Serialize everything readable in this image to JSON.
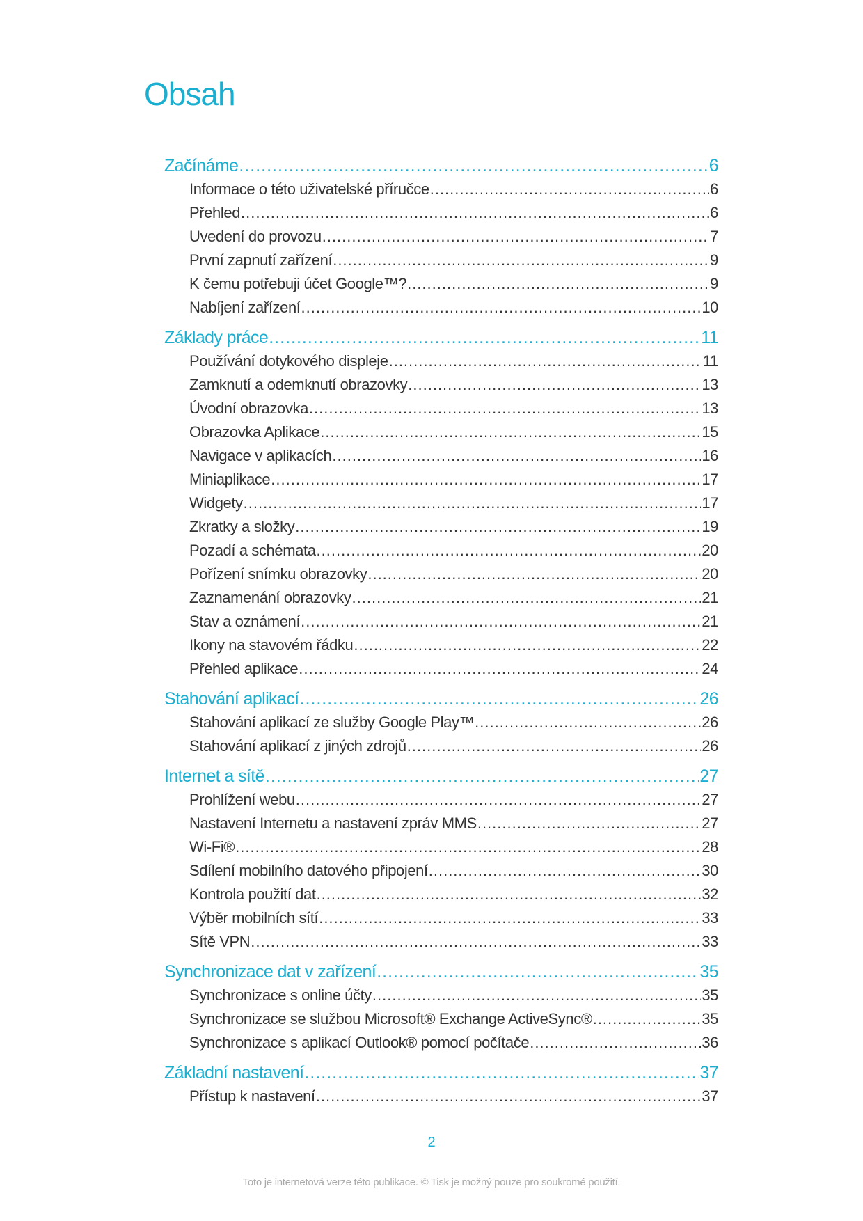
{
  "title": "Obsah",
  "accent_color": "#1aaed0",
  "sections": [
    {
      "label": "Začínáme",
      "page": "6",
      "items": [
        {
          "label": "Informace o této uživatelské příručce",
          "page": "6"
        },
        {
          "label": "Přehled",
          "page": "6"
        },
        {
          "label": "Uvedení do provozu",
          "page": "7"
        },
        {
          "label": "První zapnutí zařízení",
          "page": "9"
        },
        {
          "label": "K čemu potřebuji účet Google™?",
          "page": "9"
        },
        {
          "label": "Nabíjení zařízení",
          "page": "10"
        }
      ]
    },
    {
      "label": "Základy práce",
      "page": "11",
      "items": [
        {
          "label": "Používání dotykového displeje",
          "page": "11"
        },
        {
          "label": "Zamknutí a odemknutí obrazovky",
          "page": "13"
        },
        {
          "label": "Úvodní obrazovka",
          "page": "13"
        },
        {
          "label": "Obrazovka Aplikace",
          "page": "15"
        },
        {
          "label": "Navigace v aplikacích",
          "page": "16"
        },
        {
          "label": "Miniaplikace",
          "page": "17"
        },
        {
          "label": "Widgety",
          "page": "17"
        },
        {
          "label": "Zkratky a složky",
          "page": "19"
        },
        {
          "label": "Pozadí a schémata",
          "page": "20"
        },
        {
          "label": "Pořízení snímku obrazovky",
          "page": "20"
        },
        {
          "label": "Zaznamenání obrazovky",
          "page": "21"
        },
        {
          "label": "Stav a oznámení",
          "page": "21"
        },
        {
          "label": "Ikony na stavovém řádku",
          "page": "22"
        },
        {
          "label": "Přehled aplikace",
          "page": "24"
        }
      ]
    },
    {
      "label": "Stahování aplikací",
      "page": "26",
      "items": [
        {
          "label": "Stahování aplikací ze služby Google Play™",
          "page": "26"
        },
        {
          "label": "Stahování aplikací z jiných zdrojů",
          "page": "26"
        }
      ]
    },
    {
      "label": "Internet a sítě",
      "page": "27",
      "items": [
        {
          "label": "Prohlížení webu",
          "page": "27"
        },
        {
          "label": "Nastavení Internetu a nastavení zpráv MMS ",
          "page": "27"
        },
        {
          "label": "Wi-Fi®",
          "page": "28"
        },
        {
          "label": "Sdílení mobilního datového připojení",
          "page": "30"
        },
        {
          "label": "Kontrola použití dat",
          "page": "32"
        },
        {
          "label": "Výběr mobilních sítí",
          "page": "33"
        },
        {
          "label": "Sítě VPN",
          "page": "33"
        }
      ]
    },
    {
      "label": "Synchronizace dat v zařízení",
      "page": "35",
      "items": [
        {
          "label": "Synchronizace s online účty",
          "page": "35"
        },
        {
          "label": "Synchronizace se službou Microsoft® Exchange ActiveSync®",
          "page": "35"
        },
        {
          "label": "Synchronizace s aplikací Outlook® pomocí počítače",
          "page": "36"
        }
      ]
    },
    {
      "label": "Základní nastavení",
      "page": "37",
      "items": [
        {
          "label": "Přístup k nastavení",
          "page": "37"
        }
      ]
    }
  ],
  "page_number": "2",
  "footer": "Toto je internetová verze této publikace. © Tisk je možný pouze pro soukromé použití."
}
